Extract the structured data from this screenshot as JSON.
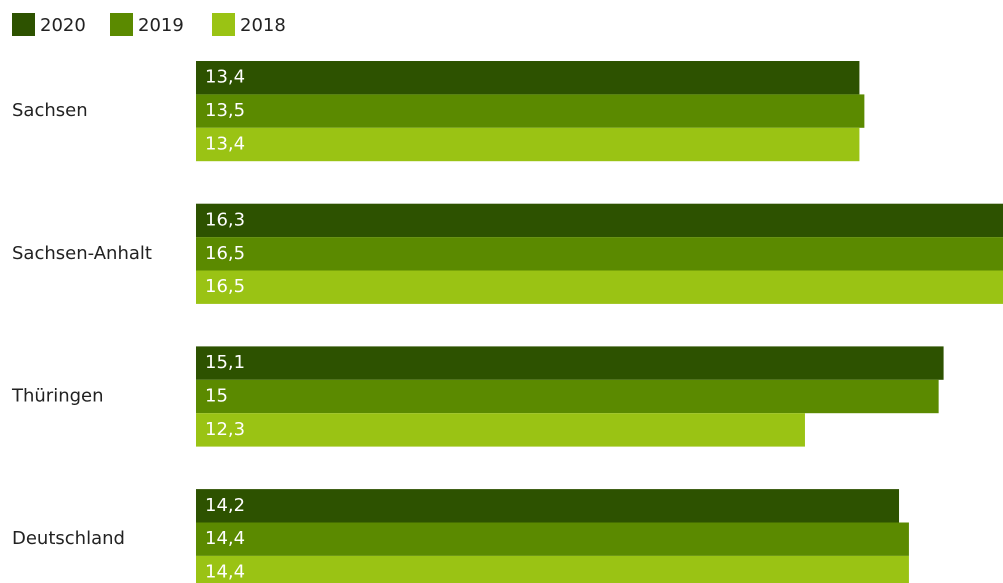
{
  "chart_data": {
    "type": "hbar",
    "categories": [
      "Sachsen",
      "Sachsen-Anhalt",
      "Thüringen",
      "Deutschland"
    ],
    "series": [
      {
        "name": "2020",
        "color": "#2d5200",
        "values": [
          13.4,
          16.3,
          15.1,
          14.2
        ],
        "value_labels": [
          "13,4",
          "16,3",
          "15,1",
          "14,2"
        ]
      },
      {
        "name": "2019",
        "color": "#5b8a00",
        "values": [
          13.5,
          16.5,
          15,
          14.4
        ],
        "value_labels": [
          "13,5",
          "16,5",
          "15",
          "14,4"
        ]
      },
      {
        "name": "2018",
        "color": "#9ac314",
        "values": [
          13.4,
          16.5,
          12.3,
          14.4
        ],
        "value_labels": [
          "13,4",
          "16,5",
          "12,3",
          "14,4"
        ]
      }
    ],
    "xlim": [
      0,
      16.3
    ],
    "legend": "top-left"
  }
}
